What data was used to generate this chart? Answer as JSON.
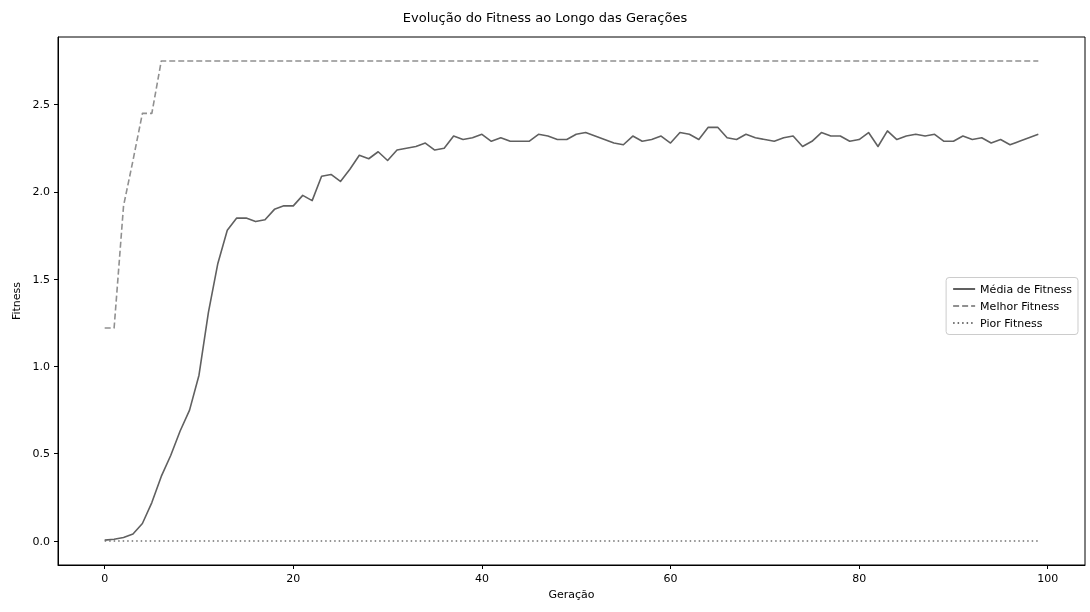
{
  "chart_data": {
    "type": "line",
    "title": "Evolução do Fitness ao Longo das Gerações",
    "xlabel": "Geração",
    "ylabel": "Fitness",
    "x": [
      0,
      1,
      2,
      3,
      4,
      5,
      6,
      7,
      8,
      9,
      10,
      11,
      12,
      13,
      14,
      15,
      16,
      17,
      18,
      19,
      20,
      21,
      22,
      23,
      24,
      25,
      26,
      27,
      28,
      29,
      30,
      31,
      32,
      33,
      34,
      35,
      36,
      37,
      38,
      39,
      40,
      41,
      42,
      43,
      44,
      45,
      46,
      47,
      48,
      49,
      50,
      51,
      52,
      53,
      54,
      55,
      56,
      57,
      58,
      59,
      60,
      61,
      62,
      63,
      64,
      65,
      66,
      67,
      68,
      69,
      70,
      71,
      72,
      73,
      74,
      75,
      76,
      77,
      78,
      79,
      80,
      81,
      82,
      83,
      84,
      85,
      86,
      87,
      88,
      89,
      90,
      91,
      92,
      93,
      94,
      95,
      96,
      97,
      98,
      99
    ],
    "series": [
      {
        "name": "Média de Fitness",
        "color": "#606060",
        "line_style": "solid",
        "values": [
          0.005,
          0.01,
          0.02,
          0.04,
          0.1,
          0.22,
          0.37,
          0.49,
          0.63,
          0.75,
          0.95,
          1.31,
          1.59,
          1.78,
          1.85,
          1.85,
          1.83,
          1.84,
          1.9,
          1.92,
          1.92,
          1.98,
          1.95,
          2.09,
          2.1,
          2.06,
          2.13,
          2.21,
          2.19,
          2.23,
          2.18,
          2.24,
          2.25,
          2.26,
          2.28,
          2.24,
          2.25,
          2.32,
          2.3,
          2.31,
          2.33,
          2.29,
          2.31,
          2.29,
          2.29,
          2.29,
          2.33,
          2.32,
          2.3,
          2.3,
          2.33,
          2.34,
          2.32,
          2.3,
          2.28,
          2.27,
          2.32,
          2.29,
          2.3,
          2.32,
          2.28,
          2.34,
          2.33,
          2.3,
          2.37,
          2.37,
          2.31,
          2.3,
          2.33,
          2.31,
          2.3,
          2.29,
          2.31,
          2.32,
          2.26,
          2.29,
          2.34,
          2.32,
          2.32,
          2.29,
          2.3,
          2.34,
          2.26,
          2.35,
          2.3,
          2.32,
          2.33,
          2.32,
          2.33,
          2.29,
          2.29,
          2.32,
          2.3,
          2.31,
          2.28,
          2.3,
          2.27,
          2.29,
          2.31,
          2.33
        ]
      },
      {
        "name": "Melhor Fitness",
        "color": "#909090",
        "line_style": "dashed",
        "values": [
          1.22,
          1.22,
          1.92,
          2.18,
          2.45,
          2.45,
          2.75,
          2.75,
          2.75,
          2.75,
          2.75,
          2.75,
          2.75,
          2.75,
          2.75,
          2.75,
          2.75,
          2.75,
          2.75,
          2.75,
          2.75,
          2.75,
          2.75,
          2.75,
          2.75,
          2.75,
          2.75,
          2.75,
          2.75,
          2.75,
          2.75,
          2.75,
          2.75,
          2.75,
          2.75,
          2.75,
          2.75,
          2.75,
          2.75,
          2.75,
          2.75,
          2.75,
          2.75,
          2.75,
          2.75,
          2.75,
          2.75,
          2.75,
          2.75,
          2.75,
          2.75,
          2.75,
          2.75,
          2.75,
          2.75,
          2.75,
          2.75,
          2.75,
          2.75,
          2.75,
          2.75,
          2.75,
          2.75,
          2.75,
          2.75,
          2.75,
          2.75,
          2.75,
          2.75,
          2.75,
          2.75,
          2.75,
          2.75,
          2.75,
          2.75,
          2.75,
          2.75,
          2.75,
          2.75,
          2.75,
          2.75,
          2.75,
          2.75,
          2.75,
          2.75,
          2.75,
          2.75,
          2.75,
          2.75,
          2.75,
          2.75,
          2.75,
          2.75,
          2.75,
          2.75,
          2.75,
          2.75,
          2.75,
          2.75,
          2.75
        ]
      },
      {
        "name": "Pior Fitness",
        "color": "#707070",
        "line_style": "dotted",
        "values": [
          0,
          0,
          0,
          0,
          0,
          0,
          0,
          0,
          0,
          0,
          0,
          0,
          0,
          0,
          0,
          0,
          0,
          0,
          0,
          0,
          0,
          0,
          0,
          0,
          0,
          0,
          0,
          0,
          0,
          0,
          0,
          0,
          0,
          0,
          0,
          0,
          0,
          0,
          0,
          0,
          0,
          0,
          0,
          0,
          0,
          0,
          0,
          0,
          0,
          0,
          0,
          0,
          0,
          0,
          0,
          0,
          0,
          0,
          0,
          0,
          0,
          0,
          0,
          0,
          0,
          0,
          0,
          0,
          0,
          0,
          0,
          0,
          0,
          0,
          0,
          0,
          0,
          0,
          0,
          0,
          0,
          0,
          0,
          0,
          0,
          0,
          0,
          0,
          0,
          0,
          0,
          0,
          0,
          0,
          0,
          0,
          0,
          0,
          0,
          0
        ]
      }
    ],
    "xlim": [
      -4.95,
      103.95
    ],
    "xticks": [
      0,
      20,
      40,
      60,
      80,
      100
    ],
    "ylim": [
      -0.1375,
      2.8875
    ],
    "yticks": [
      {
        "value": 0,
        "label": "0.0"
      },
      {
        "value": 0.5,
        "label": "0.5"
      },
      {
        "value": 1,
        "label": "1.0"
      },
      {
        "value": 1.5,
        "label": "1.5"
      },
      {
        "value": 2,
        "label": "2.0"
      },
      {
        "value": 2.5,
        "label": "2.5"
      }
    ],
    "grid": false,
    "legend": "right",
    "marker": "none"
  }
}
